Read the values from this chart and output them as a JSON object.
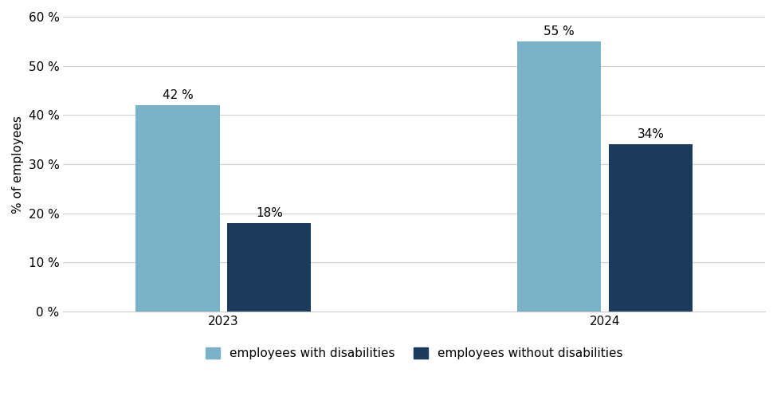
{
  "years": [
    "2023",
    "2024"
  ],
  "with_disabilities": [
    42,
    55
  ],
  "without_disabilities": [
    18,
    34
  ],
  "color_with": "#7ab3c8",
  "color_without": "#1b3a5c",
  "ylabel": "% of employees",
  "ylim": [
    0,
    60
  ],
  "yticks": [
    0,
    10,
    20,
    30,
    40,
    50,
    60
  ],
  "ytick_labels": [
    "0 %",
    "10 %",
    "20 %",
    "30 %",
    "40 %",
    "50 %",
    "60 %"
  ],
  "legend_with": "employees with disabilities",
  "legend_without": "employees without disabilities",
  "bar_width": 0.22,
  "x_positions": [
    0.27,
    0.73
  ],
  "background_color": "#ffffff",
  "label_fontsize": 11,
  "axis_fontsize": 11,
  "tick_fontsize": 11,
  "bar_labels": [
    "42 %",
    "18%",
    "55 %",
    "34%"
  ]
}
